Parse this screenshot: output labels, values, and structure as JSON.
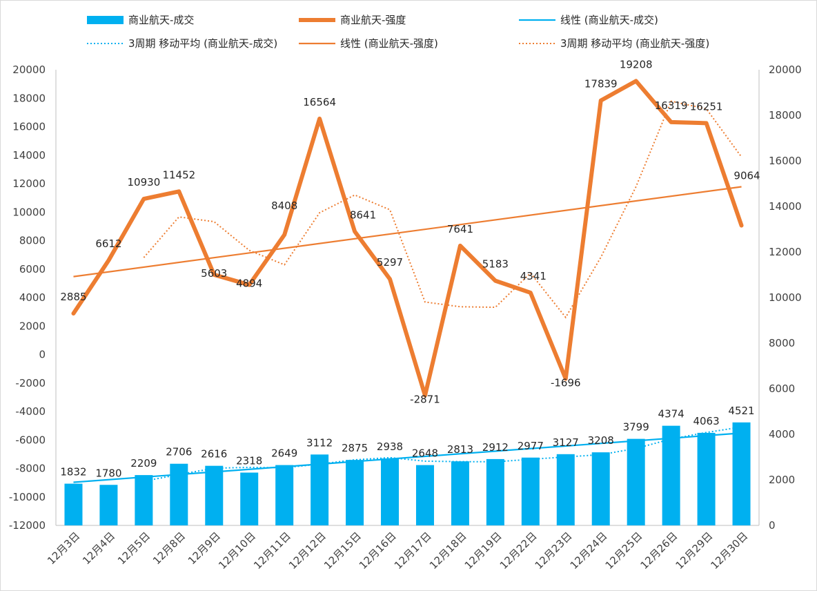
{
  "chart_data": {
    "type": "combo",
    "categories": [
      "12月3日",
      "12月4日",
      "12月5日",
      "12月8日",
      "12月9日",
      "12月10日",
      "12月11日",
      "12月12日",
      "12月15日",
      "12月16日",
      "12月17日",
      "12月18日",
      "12月19日",
      "12月22日",
      "12月23日",
      "12月24日",
      "12月25日",
      "12月26日",
      "12月29日",
      "12月30日"
    ],
    "series": [
      {
        "name": "商业航天-成交",
        "kind": "bar",
        "axis": "right",
        "color": "#00b0f0",
        "values": [
          1832,
          1780,
          2209,
          2706,
          2616,
          2318,
          2649,
          3112,
          2875,
          2938,
          2648,
          2813,
          2912,
          2977,
          3127,
          3208,
          3799,
          4374,
          4063,
          4521
        ]
      },
      {
        "name": "商业航天-强度",
        "kind": "line",
        "axis": "left",
        "color": "#ed7d31",
        "values": [
          2885,
          6612,
          10930,
          11452,
          5603,
          4894,
          8408,
          16564,
          8641,
          5297,
          -2871,
          7641,
          5183,
          4341,
          -1696,
          17839,
          19208,
          16319,
          16251,
          9064
        ]
      }
    ],
    "trendlines": [
      {
        "name": "线性 (商业航天-成交)",
        "series": "商业航天-成交",
        "type": "linear",
        "color": "#00b0f0"
      },
      {
        "name": "3周期 移动平均 (商业航天-成交)",
        "series": "商业航天-成交",
        "type": "moving_average",
        "period": 3,
        "color": "#00b0f0"
      },
      {
        "name": "线性 (商业航天-强度)",
        "series": "商业航天-强度",
        "type": "linear",
        "color": "#ed7d31"
      },
      {
        "name": "3周期 移动平均 (商业航天-强度)",
        "series": "商业航天-强度",
        "type": "moving_average",
        "period": 3,
        "color": "#ed7d31"
      }
    ],
    "left_axis": {
      "ylim": [
        -12000,
        20000
      ],
      "ticks": [
        "20000",
        "18000",
        "16000",
        "14000",
        "12000",
        "10000",
        "8000",
        "6000",
        "4000",
        "2000",
        "0",
        "-2000",
        "-4000",
        "-6000",
        "-8000",
        "-10000",
        "-12000"
      ]
    },
    "right_axis": {
      "ylim": [
        0,
        20000
      ],
      "ticks": [
        "20000",
        "18000",
        "16000",
        "14000",
        "12000",
        "10000",
        "8000",
        "6000",
        "4000",
        "2000",
        "0"
      ]
    },
    "legend_position": "top",
    "grid": false
  }
}
